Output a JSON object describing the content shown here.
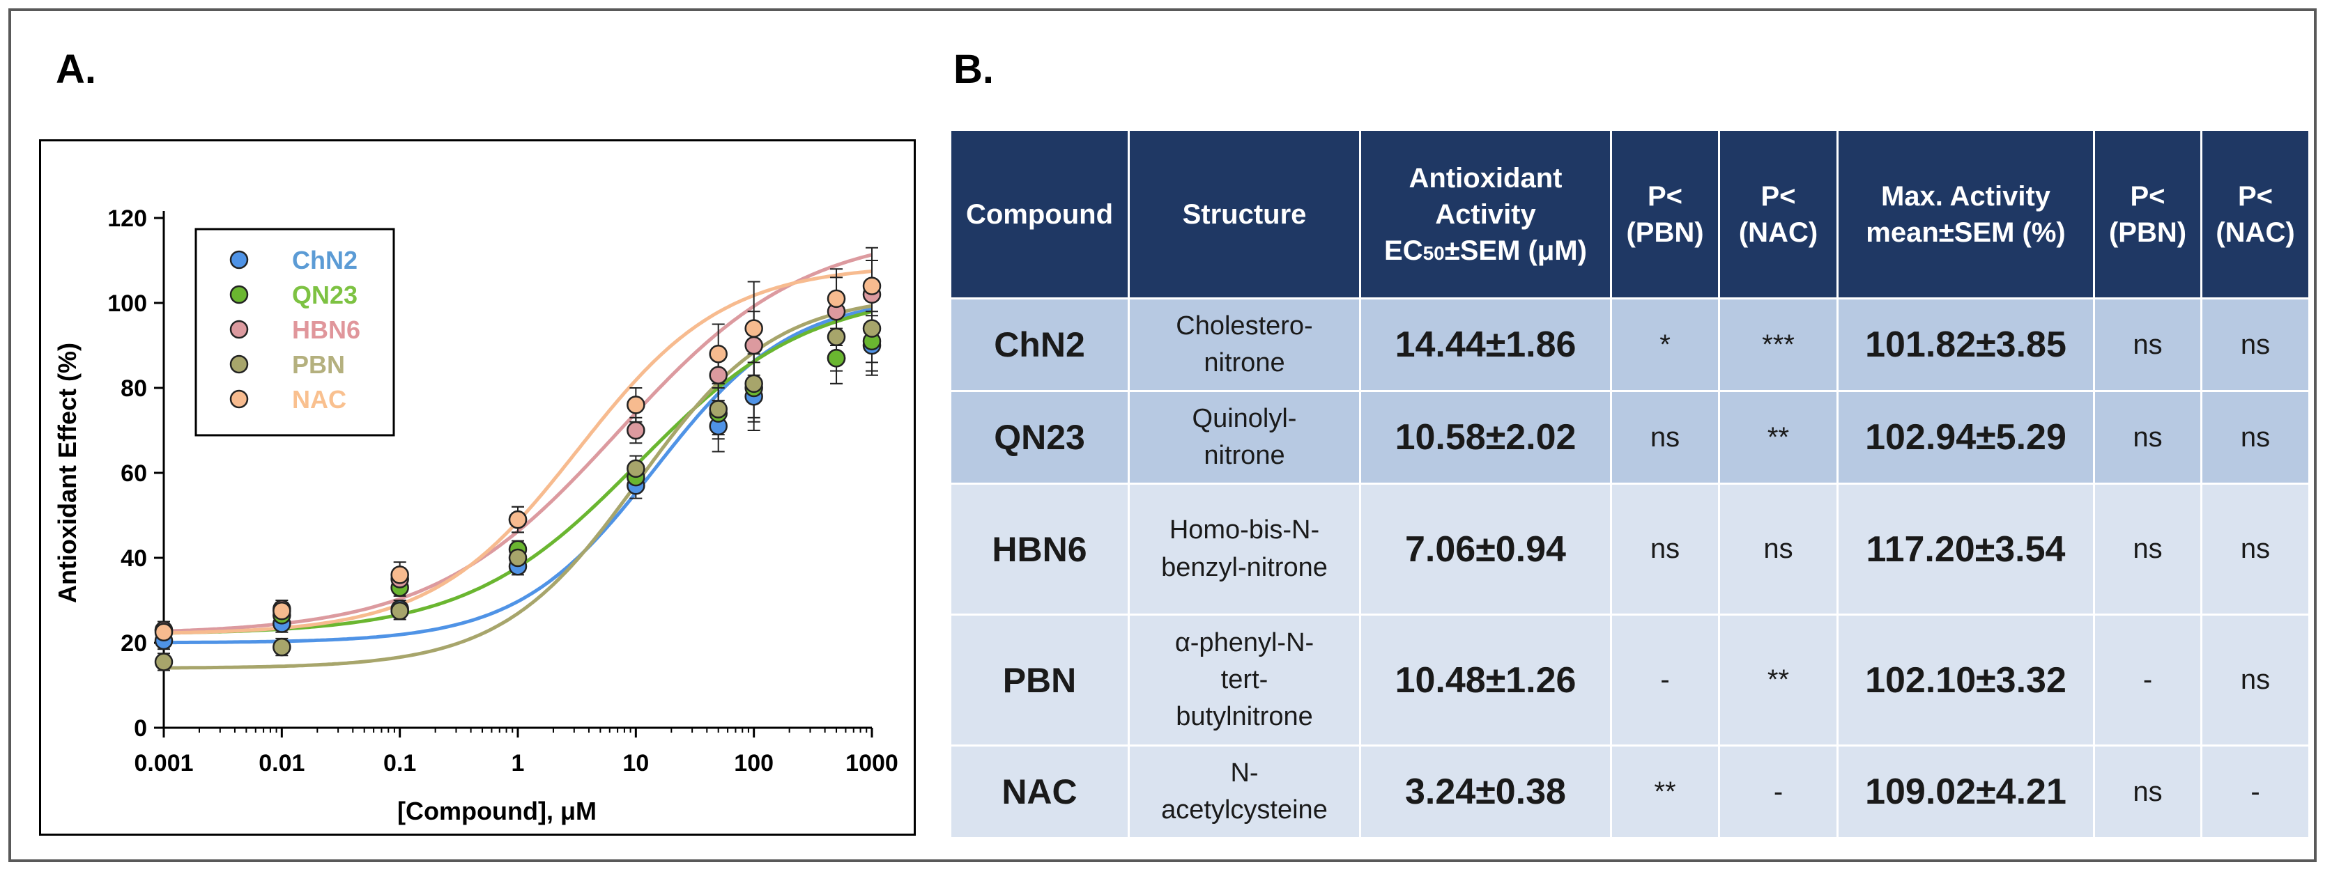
{
  "panels": {
    "a_label": "A.",
    "b_label": "B."
  },
  "chart_data": {
    "type": "scatter",
    "xscale": "log",
    "x": [
      0.001,
      0.01,
      0.1,
      1,
      10,
      50,
      100,
      500,
      1000
    ],
    "x_tick_labels": [
      "0.001",
      "0.01",
      "0.1",
      "1",
      "10",
      "100",
      "1000"
    ],
    "x_tick_values": [
      0.001,
      0.01,
      0.1,
      1,
      10,
      100,
      1000
    ],
    "y_ticks": [
      0,
      20,
      40,
      60,
      80,
      100,
      120
    ],
    "ylim": [
      0,
      120
    ],
    "xlim": [
      0.001,
      1000
    ],
    "xlabel": "[Compound], μM",
    "ylabel": "Antioxidant Effect  (%)",
    "legend_position": "top-left",
    "series": [
      {
        "name": "ChN2",
        "color": "#4f93e6",
        "label_color": "#5b9bd5",
        "values": [
          20.5,
          24.5,
          28,
          38,
          57,
          71,
          78,
          87,
          90
        ],
        "errors": [
          2,
          2,
          2,
          2,
          3,
          6,
          8,
          6,
          7
        ],
        "fit": {
          "bottom": 20,
          "top": 101.8,
          "ec50": 14.44,
          "hill": 0.75
        }
      },
      {
        "name": "QN23",
        "color": "#6ab630",
        "label_color": "#7dc242",
        "values": [
          23,
          26.5,
          33,
          42,
          59,
          74,
          80,
          87,
          91
        ],
        "errors": [
          2,
          2,
          2,
          2,
          3,
          6,
          8,
          6,
          7
        ],
        "fit": {
          "bottom": 22,
          "top": 102.9,
          "ec50": 10.58,
          "hill": 0.6
        }
      },
      {
        "name": "HBN6",
        "color": "#dc9a9f",
        "label_color": "#e0969b",
        "values": [
          23,
          28,
          35,
          49,
          70,
          83,
          90,
          98,
          102
        ],
        "errors": [
          2,
          2,
          2,
          3,
          3,
          6,
          8,
          8,
          8
        ],
        "fit": {
          "bottom": 22,
          "top": 117.2,
          "ec50": 7.06,
          "hill": 0.55
        }
      },
      {
        "name": "PBN",
        "color": "#a7a56b",
        "label_color": "#b4b07e",
        "values": [
          15.5,
          19,
          27.5,
          40,
          61,
          75,
          81,
          92,
          94
        ],
        "errors": [
          2,
          2,
          2,
          2,
          3,
          6,
          8,
          8,
          8
        ],
        "fit": {
          "bottom": 14,
          "top": 102.1,
          "ec50": 10.48,
          "hill": 0.75
        }
      },
      {
        "name": "NAC",
        "color": "#f7bb8f",
        "label_color": "#f9c08f",
        "values": [
          22.5,
          27.5,
          36,
          49,
          76,
          88,
          94,
          101,
          104
        ],
        "errors": [
          2,
          2,
          3,
          3,
          4,
          7,
          11,
          7,
          9
        ],
        "fit": {
          "bottom": 22,
          "top": 109.0,
          "ec50": 3.24,
          "hill": 0.7
        }
      }
    ]
  },
  "table": {
    "headers": {
      "compound": "Compound",
      "structure": "Structure",
      "ec50_line1": "Antioxidant",
      "ec50_line2": "Activity",
      "ec50_ec": "EC",
      "ec50_sub": "50",
      "ec50_rest": "±SEM (μM)",
      "p_label": "P<",
      "pbn": "(PBN)",
      "nac": "(NAC)",
      "max_line1": "Max. Activity",
      "max_line2": "mean±SEM (%)"
    },
    "rows": [
      {
        "compound": "ChN2",
        "structure_1": "Cholestero-",
        "structure_2": "nitrone",
        "structure_3": "",
        "ec50": "14.44±1.86",
        "p_pbn_1": "*",
        "p_nac_1": "***",
        "max": "101.82±3.85",
        "p_pbn_2": "ns",
        "p_nac_2": "ns"
      },
      {
        "compound": "QN23",
        "structure_1": "Quinolyl-",
        "structure_2": "nitrone",
        "structure_3": "",
        "ec50": "10.58±2.02",
        "p_pbn_1": "ns",
        "p_nac_1": "**",
        "max": "102.94±5.29",
        "p_pbn_2": "ns",
        "p_nac_2": "ns"
      },
      {
        "compound": "HBN6",
        "structure_1": "Homo-bis-N-",
        "structure_2": "benzyl-nitrone",
        "structure_3": "",
        "ec50": "7.06±0.94",
        "p_pbn_1": "ns",
        "p_nac_1": "ns",
        "max": "117.20±3.54",
        "p_pbn_2": "ns",
        "p_nac_2": "ns"
      },
      {
        "compound": "PBN",
        "structure_1": "α-phenyl-N-",
        "structure_2": "tert-",
        "structure_3": "butylnitrone",
        "ec50": "10.48±1.26",
        "p_pbn_1": "-",
        "p_nac_1": "**",
        "max": "102.10±3.32",
        "p_pbn_2": "-",
        "p_nac_2": "ns"
      },
      {
        "compound": "NAC",
        "structure_1": "N-",
        "structure_2": "acetylcysteine",
        "structure_3": "",
        "ec50": "3.24±0.38",
        "p_pbn_1": "**",
        "p_nac_1": "-",
        "max": "109.02±4.21",
        "p_pbn_2": "ns",
        "p_nac_2": "-"
      }
    ]
  }
}
